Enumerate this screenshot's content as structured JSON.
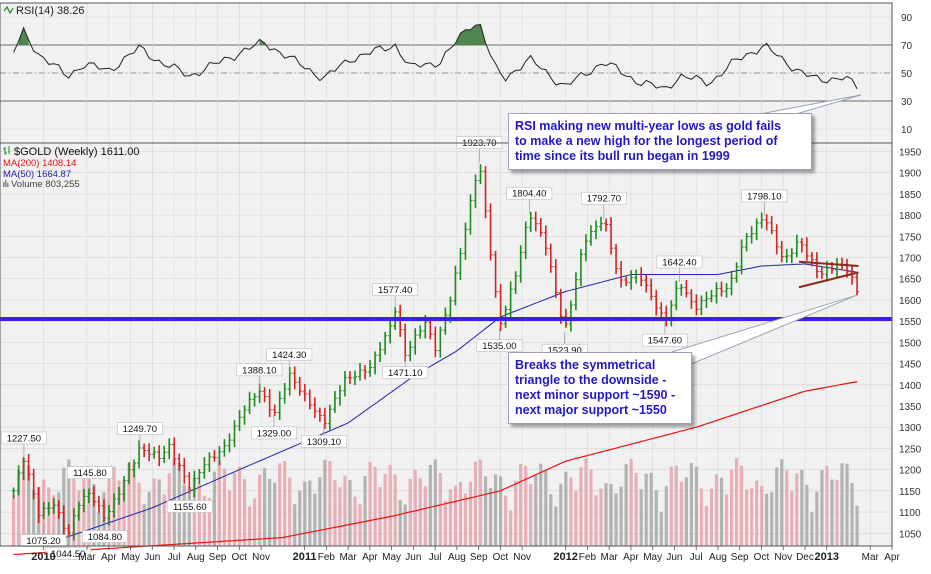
{
  "colors": {
    "background": "#ffffff",
    "panel_bg": "#f1f1f1",
    "grid": "#d4d4d4",
    "up_bar": "#1f8a1f",
    "down_bar": "#d62222",
    "ma200": "#ee1111",
    "ma50": "#2222aa",
    "support_line": "#3a1fe8",
    "volume_up": "#e8a3ad",
    "volume_down": "#a8a8a8",
    "rsi_line": "#222222",
    "rsi_fill": "#3e7a3e",
    "annotation_text": "#2218c8",
    "triangle": "#8b2b1a"
  },
  "rsi_panel": {
    "title": "RSI(14) 38.26",
    "levels": [
      "90",
      "70",
      "50",
      "30",
      "10"
    ]
  },
  "legend": {
    "symbol_line": "$GOLD (Weekly) 1611.00",
    "ma200_line": "MA(200) 1408.14",
    "ma50_line": "MA(50) 1664.87",
    "volume_line": "Volume 803,255"
  },
  "annotations": {
    "rsi": {
      "lines": [
        "RSI making new multi-year lows as gold fails",
        "to make a new high for the longest period of",
        "time since its bull run began in 1999"
      ]
    },
    "triangle": {
      "lines": [
        "Breaks the symmetrical",
        "triangle to the downside -",
        "next minor support ~1590 -",
        "next major support ~1550"
      ]
    }
  },
  "chart_data": [
    {
      "type": "ohlc",
      "title": "$GOLD (Weekly) 1611.00",
      "ylim": [
        1020,
        1970
      ],
      "y_ticks": [
        1050,
        1100,
        1150,
        1200,
        1250,
        1300,
        1350,
        1400,
        1450,
        1500,
        1550,
        1600,
        1650,
        1700,
        1750,
        1800,
        1850,
        1900,
        1950
      ],
      "x_range": [
        "2009-11",
        "2013-04"
      ],
      "x_ticks": [
        {
          "label": "2010",
          "date": "2010-01",
          "bold": true
        },
        {
          "label": "Mar",
          "date": "2010-03"
        },
        {
          "label": "Apr",
          "date": "2010-04"
        },
        {
          "label": "May",
          "date": "2010-05"
        },
        {
          "label": "Jun",
          "date": "2010-06"
        },
        {
          "label": "Jul",
          "date": "2010-07"
        },
        {
          "label": "Aug",
          "date": "2010-08"
        },
        {
          "label": "Sep",
          "date": "2010-09"
        },
        {
          "label": "Oct",
          "date": "2010-10"
        },
        {
          "label": "Nov",
          "date": "2010-11"
        },
        {
          "label": "2011",
          "date": "2011-01",
          "bold": true
        },
        {
          "label": "Feb",
          "date": "2011-02"
        },
        {
          "label": "Mar",
          "date": "2011-03"
        },
        {
          "label": "Apr",
          "date": "2011-04"
        },
        {
          "label": "May",
          "date": "2011-05"
        },
        {
          "label": "Jun",
          "date": "2011-06"
        },
        {
          "label": "Jul",
          "date": "2011-07"
        },
        {
          "label": "Aug",
          "date": "2011-08"
        },
        {
          "label": "Sep",
          "date": "2011-09"
        },
        {
          "label": "Oct",
          "date": "2011-10"
        },
        {
          "label": "Nov",
          "date": "2011-11"
        },
        {
          "label": "2012",
          "date": "2012-01",
          "bold": true
        },
        {
          "label": "Feb",
          "date": "2012-02"
        },
        {
          "label": "Mar",
          "date": "2012-03"
        },
        {
          "label": "Apr",
          "date": "2012-04"
        },
        {
          "label": "May",
          "date": "2012-05"
        },
        {
          "label": "Jun",
          "date": "2012-06"
        },
        {
          "label": "Jul",
          "date": "2012-07"
        },
        {
          "label": "Aug",
          "date": "2012-08"
        },
        {
          "label": "Sep",
          "date": "2012-09"
        },
        {
          "label": "Oct",
          "date": "2012-10"
        },
        {
          "label": "Nov",
          "date": "2012-11"
        },
        {
          "label": "Dec",
          "date": "2012-12"
        },
        {
          "label": "2013",
          "date": "2013-01",
          "bold": true
        },
        {
          "label": "Mar",
          "date": "2013-03"
        },
        {
          "label": "Apr",
          "date": "2013-04"
        }
      ],
      "price_path": [
        [
          "2009-11-20",
          1150
        ],
        [
          "2009-12-04",
          1227.5
        ],
        [
          "2009-12-25",
          1095
        ],
        [
          "2010-01-15",
          1120
        ],
        [
          "2010-02-05",
          1044.5
        ],
        [
          "2010-02-19",
          1120
        ],
        [
          "2010-03-05",
          1145.8
        ],
        [
          "2010-03-26",
          1084.8
        ],
        [
          "2010-04-16",
          1150
        ],
        [
          "2010-05-14",
          1249.7
        ],
        [
          "2010-06-11",
          1230
        ],
        [
          "2010-06-25",
          1255
        ],
        [
          "2010-07-23",
          1155.6
        ],
        [
          "2010-08-13",
          1215
        ],
        [
          "2010-09-10",
          1250
        ],
        [
          "2010-10-08",
          1345
        ],
        [
          "2010-10-29",
          1388.1
        ],
        [
          "2010-11-19",
          1329
        ],
        [
          "2010-12-10",
          1424.3
        ],
        [
          "2011-01-28",
          1309.1
        ],
        [
          "2011-02-25",
          1410
        ],
        [
          "2011-04-01",
          1440
        ],
        [
          "2011-04-29",
          1535
        ],
        [
          "2011-05-06",
          1577.4
        ],
        [
          "2011-05-20",
          1471.1
        ],
        [
          "2011-06-17",
          1550
        ],
        [
          "2011-07-01",
          1485
        ],
        [
          "2011-07-22",
          1600
        ],
        [
          "2011-08-12",
          1760
        ],
        [
          "2011-08-26",
          1880
        ],
        [
          "2011-09-02",
          1923.7
        ],
        [
          "2011-09-23",
          1640
        ],
        [
          "2011-09-30",
          1535
        ],
        [
          "2011-10-21",
          1650
        ],
        [
          "2011-11-11",
          1804.4
        ],
        [
          "2011-12-02",
          1740
        ],
        [
          "2011-12-30",
          1523.9
        ],
        [
          "2012-01-27",
          1740
        ],
        [
          "2012-02-24",
          1792.7
        ],
        [
          "2012-03-16",
          1640
        ],
        [
          "2012-04-13",
          1660
        ],
        [
          "2012-05-18",
          1547.6
        ],
        [
          "2012-06-08",
          1642.4
        ],
        [
          "2012-06-29",
          1580
        ],
        [
          "2012-07-27",
          1620
        ],
        [
          "2012-08-17",
          1630
        ],
        [
          "2012-09-07",
          1740
        ],
        [
          "2012-10-05",
          1798.1
        ],
        [
          "2012-11-02",
          1690
        ],
        [
          "2012-11-23",
          1740
        ],
        [
          "2012-12-21",
          1660
        ],
        [
          "2013-01-18",
          1685
        ],
        [
          "2013-02-01",
          1670
        ],
        [
          "2013-02-15",
          1611
        ]
      ],
      "price_labels": [
        {
          "text": "1227.50",
          "date": "2009-12-04",
          "value": 1227.5,
          "pos": "above"
        },
        {
          "text": "1075.20",
          "date": "2010-01-01",
          "value": 1075.2,
          "pos": "below"
        },
        {
          "text": "1044.50",
          "date": "2010-02-05",
          "value": 1044.5,
          "pos": "below"
        },
        {
          "text": "1145.80",
          "date": "2010-03-05",
          "value": 1145.8,
          "pos": "above"
        },
        {
          "text": "1084.80",
          "date": "2010-03-26",
          "value": 1084.8,
          "pos": "below"
        },
        {
          "text": "1249.70",
          "date": "2010-05-14",
          "value": 1249.7,
          "pos": "above"
        },
        {
          "text": "1155.60",
          "date": "2010-07-23",
          "value": 1155.6,
          "pos": "below"
        },
        {
          "text": "1388.10",
          "date": "2010-10-29",
          "value": 1388.1,
          "pos": "above"
        },
        {
          "text": "1424.30",
          "date": "2010-12-10",
          "value": 1424.3,
          "pos": "above"
        },
        {
          "text": "1329.00",
          "date": "2010-11-19",
          "value": 1329.0,
          "pos": "below"
        },
        {
          "text": "1309.10",
          "date": "2011-01-28",
          "value": 1309.1,
          "pos": "below"
        },
        {
          "text": "1577.40",
          "date": "2011-05-06",
          "value": 1577.4,
          "pos": "above"
        },
        {
          "text": "1471.10",
          "date": "2011-05-20",
          "value": 1471.1,
          "pos": "below"
        },
        {
          "text": "1923.70",
          "date": "2011-09-02",
          "value": 1923.7,
          "pos": "above"
        },
        {
          "text": "1535.00",
          "date": "2011-09-30",
          "value": 1535.0,
          "pos": "below"
        },
        {
          "text": "1804.40",
          "date": "2011-11-11",
          "value": 1804.4,
          "pos": "above"
        },
        {
          "text": "1523.90",
          "date": "2011-12-30",
          "value": 1523.9,
          "pos": "below"
        },
        {
          "text": "1792.70",
          "date": "2012-02-24",
          "value": 1792.7,
          "pos": "above"
        },
        {
          "text": "1642.40",
          "date": "2012-06-08",
          "value": 1642.4,
          "pos": "above"
        },
        {
          "text": "1547.60",
          "date": "2012-05-18",
          "value": 1547.6,
          "pos": "below"
        },
        {
          "text": "1798.10",
          "date": "2012-10-05",
          "value": 1798.1,
          "pos": "above"
        }
      ],
      "ma200_path": [
        [
          "2009-11-20",
          1000
        ],
        [
          "2010-12-01",
          1040
        ],
        [
          "2011-05-01",
          1090
        ],
        [
          "2011-10-01",
          1150
        ],
        [
          "2012-01-01",
          1220
        ],
        [
          "2012-07-01",
          1300
        ],
        [
          "2012-12-01",
          1385
        ],
        [
          "2013-02-15",
          1408.14
        ]
      ],
      "ma50_path": [
        [
          "2010-01-15",
          1030
        ],
        [
          "2010-06-01",
          1110
        ],
        [
          "2010-10-01",
          1200
        ],
        [
          "2011-03-01",
          1310
        ],
        [
          "2011-06-01",
          1420
        ],
        [
          "2011-08-01",
          1480
        ],
        [
          "2011-10-01",
          1560
        ],
        [
          "2012-01-01",
          1620
        ],
        [
          "2012-04-01",
          1660
        ],
        [
          "2012-08-01",
          1660
        ],
        [
          "2012-10-01",
          1680
        ],
        [
          "2012-12-01",
          1685
        ],
        [
          "2013-02-15",
          1664.87
        ]
      ],
      "support_level": 1555,
      "triangle": {
        "upper": [
          [
            "2012-11-23",
            1690
          ],
          [
            "2013-02-15",
            1680
          ]
        ],
        "lower": [
          [
            "2012-11-23",
            1630
          ],
          [
            "2013-02-15",
            1665
          ]
        ]
      },
      "volume_band": [
        1020,
        1280
      ]
    },
    {
      "type": "line",
      "title": "RSI(14) 38.26",
      "ylim": [
        0,
        100
      ],
      "y_ticks": [
        90,
        70,
        50,
        30,
        10
      ],
      "reference_lines": [
        70,
        50,
        30
      ],
      "path": [
        [
          "2009-11-20",
          65
        ],
        [
          "2009-12-04",
          80
        ],
        [
          "2009-12-25",
          63
        ],
        [
          "2010-01-15",
          55
        ],
        [
          "2010-02-05",
          48
        ],
        [
          "2010-02-26",
          56
        ],
        [
          "2010-04-02",
          52
        ],
        [
          "2010-05-14",
          68
        ],
        [
          "2010-06-11",
          58
        ],
        [
          "2010-07-23",
          48
        ],
        [
          "2010-08-27",
          56
        ],
        [
          "2010-10-08",
          66
        ],
        [
          "2010-11-05",
          72
        ],
        [
          "2010-12-03",
          63
        ],
        [
          "2011-01-28",
          46
        ],
        [
          "2011-03-04",
          60
        ],
        [
          "2011-05-06",
          70
        ],
        [
          "2011-05-27",
          54
        ],
        [
          "2011-07-08",
          58
        ],
        [
          "2011-08-19",
          84
        ],
        [
          "2011-09-02",
          86
        ],
        [
          "2011-09-23",
          54
        ],
        [
          "2011-10-07",
          46
        ],
        [
          "2011-11-11",
          60
        ],
        [
          "2011-12-30",
          40
        ],
        [
          "2012-02-24",
          58
        ],
        [
          "2012-04-06",
          45
        ],
        [
          "2012-05-18",
          38
        ],
        [
          "2012-06-08",
          48
        ],
        [
          "2012-07-20",
          43
        ],
        [
          "2012-08-24",
          58
        ],
        [
          "2012-10-05",
          70
        ],
        [
          "2012-11-02",
          58
        ],
        [
          "2012-12-21",
          44
        ],
        [
          "2013-01-25",
          48
        ],
        [
          "2013-02-15",
          38.26
        ]
      ],
      "fill_above": 70
    }
  ]
}
